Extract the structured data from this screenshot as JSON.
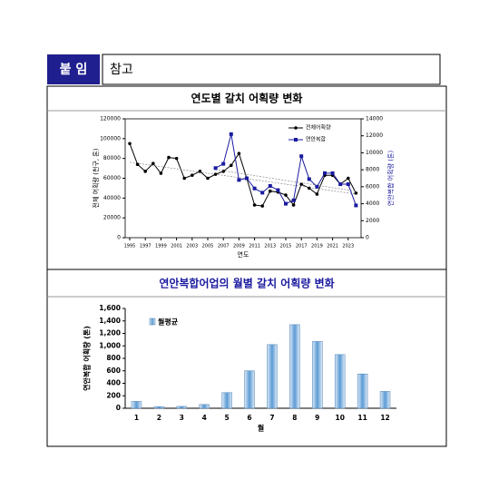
{
  "header": {
    "label": "붙 임",
    "title": "참고"
  },
  "chart_data": [
    {
      "type": "line",
      "title": "연도별 갈치 어획량 변화",
      "x_label": "연도",
      "y_label": "전체 어획량 (천구, 톤)",
      "y2_label": "연안복합 어획량 (톤)",
      "x": [
        1995,
        1996,
        1997,
        1998,
        1999,
        2000,
        2001,
        2002,
        2003,
        2004,
        2005,
        2006,
        2007,
        2008,
        2009,
        2010,
        2011,
        2012,
        2013,
        2014,
        2015,
        2016,
        2017,
        2018,
        2019,
        2020,
        2021,
        2022,
        2023,
        2024
      ],
      "xlim": [
        1995,
        2025
      ],
      "xticks": [
        1995,
        1997,
        1999,
        2001,
        2003,
        2005,
        2007,
        2009,
        2011,
        2013,
        2015,
        2017,
        2019,
        2021,
        2023
      ],
      "ylim": [
        0,
        120000
      ],
      "yticks": [
        0,
        20000,
        40000,
        60000,
        80000,
        100000,
        120000
      ],
      "y2lim": [
        0,
        14000
      ],
      "y2ticks": [
        0,
        2000,
        4000,
        6000,
        8000,
        10000,
        12000,
        14000
      ],
      "legend": "upper right",
      "trendline": true,
      "series": [
        {
          "name": "전체어획량",
          "color": "#000000",
          "marker": "circle",
          "values": [
            95000,
            74000,
            67000,
            75000,
            65000,
            81000,
            80000,
            60000,
            63000,
            67000,
            60000,
            64000,
            67000,
            73000,
            85000,
            60000,
            33000,
            32000,
            47000,
            46000,
            43000,
            33000,
            54000,
            50000,
            44000,
            63000,
            63000,
            54000,
            60000,
            45000
          ]
        },
        {
          "name": "연안복합",
          "color": "#1a1aa0",
          "marker": "square",
          "axis": "y2",
          "values": [
            null,
            null,
            null,
            null,
            null,
            null,
            null,
            null,
            null,
            null,
            null,
            8200,
            8700,
            12200,
            6800,
            7000,
            5800,
            5300,
            6100,
            5600,
            4000,
            4400,
            9600,
            6900,
            6000,
            7600,
            7600,
            6300,
            6300,
            3800
          ]
        }
      ]
    },
    {
      "type": "bar",
      "title": "연안복합어업의 월별 갈치 어획량 변화",
      "x_label": "월",
      "y_label": "연안복합 어획량 (톤)",
      "categories": [
        "1",
        "2",
        "3",
        "4",
        "5",
        "6",
        "7",
        "8",
        "9",
        "10",
        "11",
        "12"
      ],
      "series": [
        {
          "name": "월평균",
          "color": "#5b9bd5",
          "values": [
            110,
            25,
            30,
            60,
            250,
            600,
            1020,
            1340,
            1070,
            860,
            550,
            270
          ]
        }
      ],
      "ylim": [
        0,
        1600
      ],
      "yticks": [
        0,
        {
          "value": 200,
          "label": "200"
        },
        {
          "value": 400,
          "label": "400"
        },
        {
          "value": 600,
          "label": "600"
        },
        {
          "value": 800,
          "label": "800"
        },
        {
          "value": 1000,
          "label": "1,000"
        },
        {
          "value": 1200,
          "label": "1,200"
        },
        {
          "value": 1400,
          "label": "1,400"
        },
        {
          "value": 1600,
          "label": "1,600"
        }
      ],
      "legend": "upper left"
    }
  ]
}
